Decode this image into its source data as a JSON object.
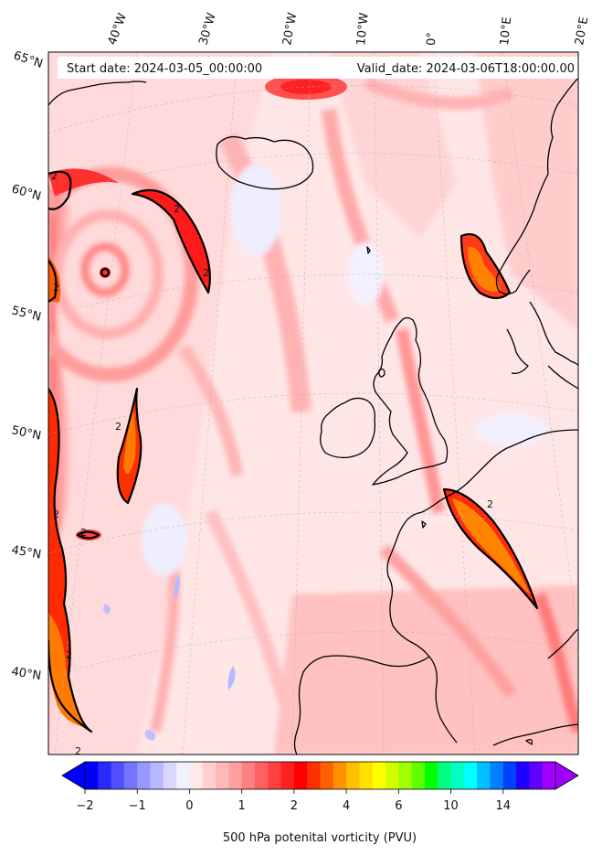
{
  "map": {
    "start_date": "Start date: 2024-03-05_00:00:00",
    "valid_date": "Valid_date: 2024-03-06T18:00:00.00",
    "lon_labels": [
      "40°W",
      "30°W",
      "20°W",
      "10°W",
      "0°",
      "10°E",
      "20°E"
    ],
    "lat_labels": [
      "65°N",
      "60°N",
      "55°N",
      "50°N",
      "45°N",
      "40°N"
    ],
    "contour_labels": [
      "2",
      "2",
      "2",
      "2",
      "2",
      "2",
      "2",
      "2",
      "2",
      "2"
    ]
  },
  "colorbar": {
    "tick_labels": [
      "−2",
      "−1",
      "0",
      "1",
      "2",
      "4",
      "6",
      "10",
      "14"
    ],
    "label": "500 hPa potenital vorticity (PVU)",
    "colors": [
      "#0000ff",
      "#2a2aff",
      "#5050ff",
      "#7474ff",
      "#9898ff",
      "#b8b8ff",
      "#d8d8ff",
      "#f0f0ff",
      "#ffe8e8",
      "#ffd0d0",
      "#ffb8b8",
      "#ffa0a0",
      "#ff8080",
      "#ff6060",
      "#ff4040",
      "#ff2020",
      "#ff0000",
      "#ff3000",
      "#ff6000",
      "#ff9000",
      "#ffc000",
      "#ffe000",
      "#ffff00",
      "#d0ff00",
      "#a0ff00",
      "#60ff00",
      "#00ff00",
      "#00ff80",
      "#00ffc0",
      "#00ffff",
      "#00c0ff",
      "#0080ff",
      "#0040ff",
      "#2000ff",
      "#6000ff",
      "#a000ff"
    ]
  }
}
